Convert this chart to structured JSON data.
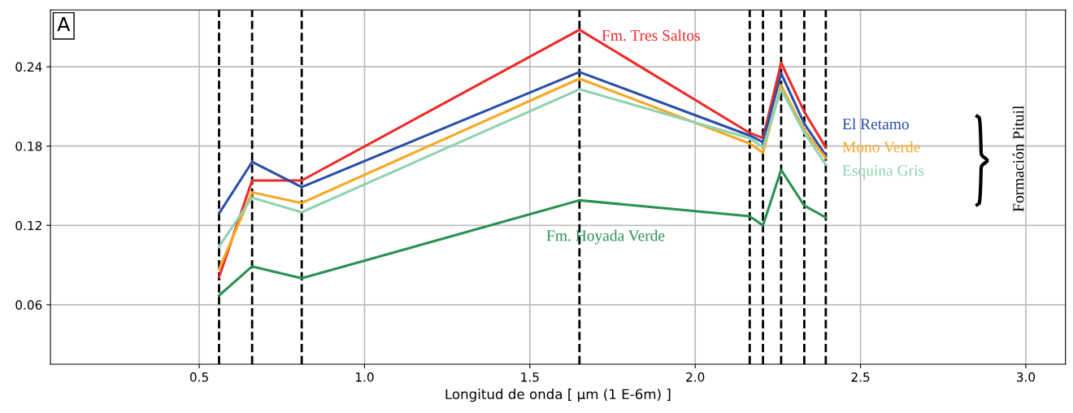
{
  "chart_data": {
    "type": "line",
    "xlabel": "Longitud de onda [ µm (1 E-6m) ]",
    "x": [
      0.56,
      0.66,
      0.81,
      1.65,
      2.165,
      2.205,
      2.26,
      2.33,
      2.395
    ],
    "series": [
      {
        "name": "Fm. Tres Saltos",
        "color": "#ee2a2a",
        "values": [
          0.081,
          0.154,
          0.154,
          0.268,
          0.19,
          0.186,
          0.243,
          0.206,
          0.179
        ]
      },
      {
        "name": "El Retamo",
        "color": "#2a4fa8",
        "values": [
          0.129,
          0.168,
          0.149,
          0.236,
          0.188,
          0.183,
          0.235,
          0.197,
          0.173
        ]
      },
      {
        "name": "Mono Verde",
        "color": "#f7a823",
        "values": [
          0.087,
          0.145,
          0.137,
          0.231,
          0.182,
          0.175,
          0.226,
          0.192,
          0.171
        ]
      },
      {
        "name": "Esquina Gris",
        "color": "#8ed2b2",
        "values": [
          0.104,
          0.141,
          0.13,
          0.223,
          0.186,
          0.179,
          0.223,
          0.19,
          0.166
        ]
      },
      {
        "name": "Fm. Hoyada Verde",
        "color": "#2a9150",
        "values": [
          0.067,
          0.089,
          0.08,
          0.139,
          0.127,
          0.12,
          0.162,
          0.135,
          0.126
        ]
      }
    ],
    "ref_lines": [
      {
        "axis": "x",
        "value": 0.56,
        "color": "#000000",
        "line_style": "dashed"
      },
      {
        "axis": "x",
        "value": 0.66,
        "color": "#000000",
        "line_style": "dashed"
      },
      {
        "axis": "x",
        "value": 0.81,
        "color": "#000000",
        "line_style": "dashed"
      },
      {
        "axis": "x",
        "value": 1.65,
        "color": "#000000",
        "line_style": "dashed"
      },
      {
        "axis": "x",
        "value": 2.165,
        "color": "#000000",
        "line_style": "dashed"
      },
      {
        "axis": "x",
        "value": 2.205,
        "color": "#000000",
        "line_style": "dashed"
      },
      {
        "axis": "x",
        "value": 2.26,
        "color": "#000000",
        "line_style": "dashed"
      },
      {
        "axis": "x",
        "value": 2.33,
        "color": "#000000",
        "line_style": "dashed"
      },
      {
        "axis": "x",
        "value": 2.395,
        "color": "#000000",
        "line_style": "dashed"
      }
    ],
    "annotations": [
      "A",
      "Formación Pituil"
    ],
    "xlim": [
      0.05,
      3.12
    ],
    "ylim": [
      0.015,
      0.283
    ],
    "xticks": [
      0.5,
      {
        "value": 1,
        "label": "1.0"
      },
      1.5,
      {
        "value": 2,
        "label": "2.0"
      },
      2.5,
      {
        "value": 3,
        "label": "3.0"
      }
    ],
    "yticks": [
      0.06,
      0.12,
      0.18,
      0.24
    ],
    "grid": true,
    "legend": false,
    "line_style": "solid",
    "marker": "none"
  }
}
